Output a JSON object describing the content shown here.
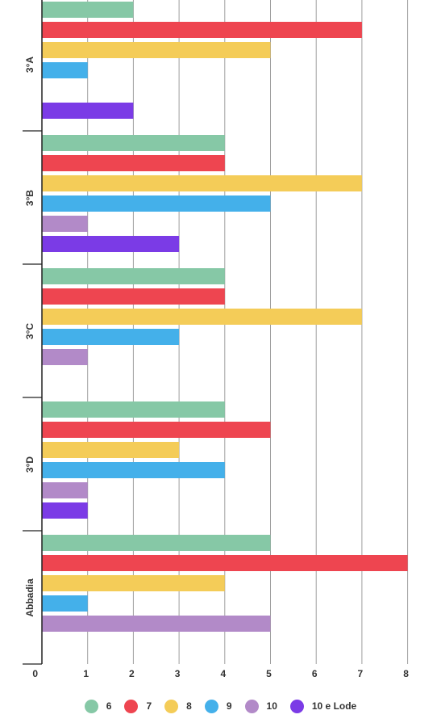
{
  "chart_data": {
    "type": "bar",
    "orientation": "horizontal",
    "categories": [
      "3°A",
      "3°B",
      "3°C",
      "3°D",
      "Abbadia"
    ],
    "series": [
      {
        "name": "6",
        "color": "#86c8a6",
        "values": [
          2,
          4,
          4,
          4,
          5
        ]
      },
      {
        "name": "7",
        "color": "#ee4550",
        "values": [
          7,
          4,
          4,
          5,
          8
        ]
      },
      {
        "name": "8",
        "color": "#f4cc58",
        "values": [
          5,
          7,
          7,
          3,
          4
        ]
      },
      {
        "name": "9",
        "color": "#44b0ea",
        "values": [
          1,
          5,
          3,
          4,
          1
        ]
      },
      {
        "name": "10",
        "color": "#b28ac8",
        "values": [
          0,
          1,
          1,
          1,
          5
        ]
      },
      {
        "name": "10 e Lode",
        "color": "#7b3be6",
        "values": [
          2,
          3,
          0,
          1,
          0
        ]
      }
    ],
    "xlim": [
      0,
      8
    ],
    "xticks": [
      "0",
      "1",
      "2",
      "3",
      "4",
      "5",
      "6",
      "7",
      "8"
    ],
    "grid": true,
    "legend_position": "bottom"
  }
}
